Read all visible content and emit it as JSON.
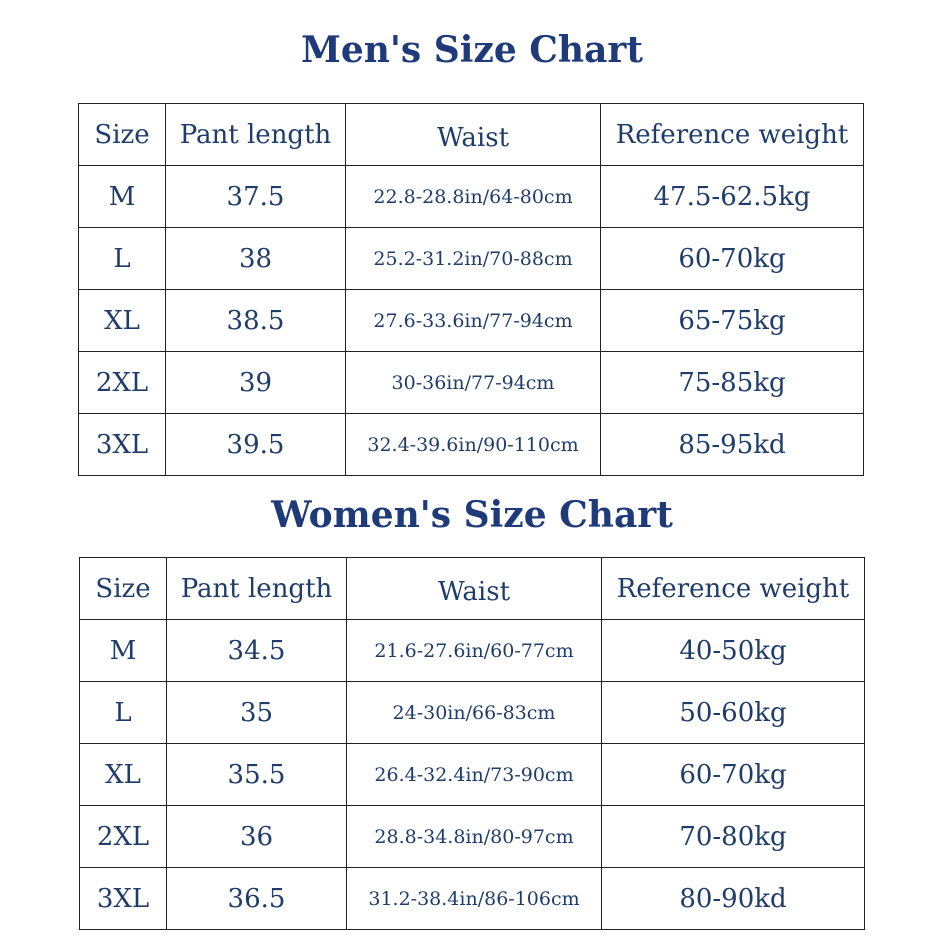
{
  "men": {
    "title": "Men's Size Chart",
    "headers": [
      "Size",
      "Pant length",
      "Waist",
      "Reference weight"
    ],
    "rows": [
      {
        "size": "M",
        "length": "37.5",
        "waist": "22.8-28.8in/64-80cm",
        "weight": "47.5-62.5kg"
      },
      {
        "size": "L",
        "length": "38",
        "waist": "25.2-31.2in/70-88cm",
        "weight": "60-70kg"
      },
      {
        "size": "XL",
        "length": "38.5",
        "waist": "27.6-33.6in/77-94cm",
        "weight": "65-75kg"
      },
      {
        "size": "2XL",
        "length": "39",
        "waist": "30-36in/77-94cm",
        "weight": "75-85kg"
      },
      {
        "size": "3XL",
        "length": "39.5",
        "waist": "32.4-39.6in/90-110cm",
        "weight": "85-95kd"
      }
    ]
  },
  "women": {
    "title": "Women's Size Chart",
    "headers": [
      "Size",
      "Pant length",
      "Waist",
      "Reference weight"
    ],
    "rows": [
      {
        "size": "M",
        "length": "34.5",
        "waist": "21.6-27.6in/60-77cm",
        "weight": "40-50kg"
      },
      {
        "size": "L",
        "length": "35",
        "waist": "24-30in/66-83cm",
        "weight": "50-60kg"
      },
      {
        "size": "XL",
        "length": "35.5",
        "waist": "26.4-32.4in/73-90cm",
        "weight": "60-70kg"
      },
      {
        "size": "2XL",
        "length": "36",
        "waist": "28.8-34.8in/80-97cm",
        "weight": "70-80kg"
      },
      {
        "size": "3XL",
        "length": "36.5",
        "waist": "31.2-38.4in/86-106cm",
        "weight": "80-90kd"
      }
    ]
  }
}
